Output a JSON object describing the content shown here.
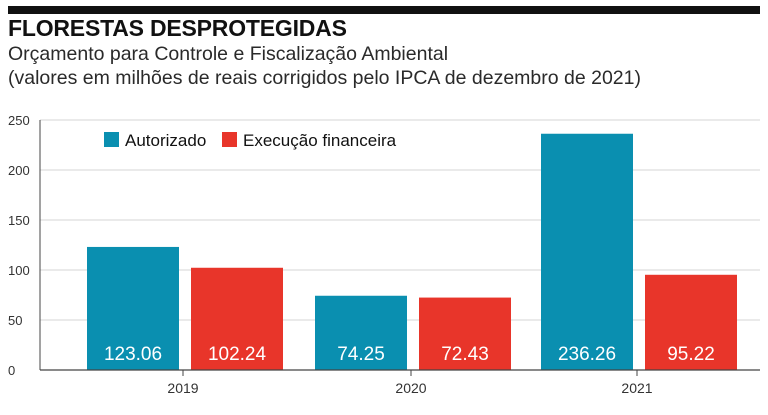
{
  "header": {
    "title": "FLORESTAS DESPROTEGIDAS",
    "subtitle_line1": "Orçamento para Controle e Fiscalização Ambiental",
    "subtitle_line2": "(valores em milhões de reais corrigidos pelo IPCA de dezembro de 2021)"
  },
  "colors": {
    "autorizado": "#0a8fb0",
    "execucao": "#e8352a",
    "grid": "#d4d4d4",
    "axis": "#444444"
  },
  "chart_data": {
    "type": "bar",
    "categories": [
      "2019",
      "2020",
      "2021"
    ],
    "series": [
      {
        "name": "Autorizado",
        "values": [
          123.06,
          74.25,
          236.26
        ],
        "labels": [
          "123.06",
          "74.25",
          "236.26"
        ]
      },
      {
        "name": "Execução financeira",
        "values": [
          102.24,
          72.43,
          95.22
        ],
        "labels": [
          "102.24",
          "72.43",
          "95.22"
        ]
      }
    ],
    "yticks": [
      0,
      50,
      100,
      150,
      200,
      250
    ],
    "ylim": [
      0,
      250
    ],
    "grid": true,
    "legend_position": "top-left",
    "title": "FLORESTAS DESPROTEGIDAS",
    "xlabel": "",
    "ylabel": ""
  }
}
